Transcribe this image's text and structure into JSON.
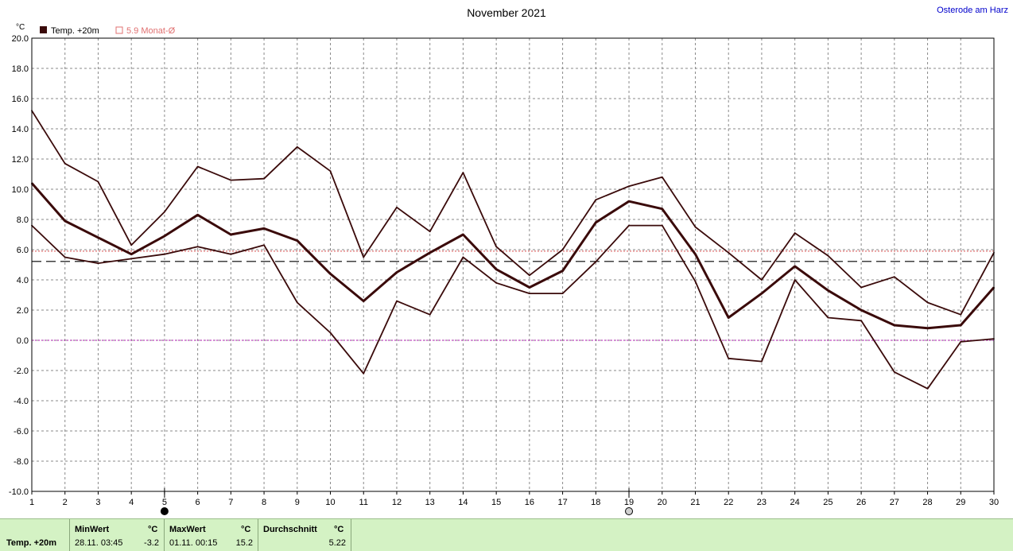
{
  "chart_data": {
    "type": "line",
    "title": "November 2021",
    "location": "Osterode am Harz",
    "unit_label": "°C",
    "ylim": [
      -10,
      20
    ],
    "yticks": [
      "20.0",
      "18.0",
      "16.0",
      "14.0",
      "12.0",
      "10.0",
      "8.0",
      "6.0",
      "4.0",
      "2.0",
      "0.0",
      "-2.0",
      "-4.0",
      "-6.0",
      "-8.0",
      "-10.0"
    ],
    "x": [
      1,
      2,
      3,
      4,
      5,
      6,
      7,
      8,
      9,
      10,
      11,
      12,
      13,
      14,
      15,
      16,
      17,
      18,
      19,
      20,
      21,
      22,
      23,
      24,
      25,
      26,
      27,
      28,
      29,
      30
    ],
    "grid": true,
    "legend": [
      {
        "label": "Temp. +20m",
        "color": "#3a0a0a"
      },
      {
        "label": "5.9 Monat-Ø",
        "color": "#e07070"
      }
    ],
    "series": [
      {
        "role": "max",
        "values": [
          15.2,
          11.7,
          10.5,
          6.3,
          8.5,
          11.5,
          10.6,
          10.7,
          12.8,
          11.2,
          5.5,
          8.8,
          7.2,
          11.1,
          6.2,
          4.3,
          6.0,
          9.3,
          10.2,
          10.8,
          7.5,
          5.8,
          4.0,
          7.1,
          5.6,
          3.5,
          4.2,
          2.5,
          1.7,
          5.8
        ]
      },
      {
        "role": "mean",
        "values": [
          10.4,
          7.9,
          6.8,
          5.7,
          6.9,
          8.3,
          7.0,
          7.4,
          6.6,
          4.4,
          2.6,
          4.5,
          5.8,
          7.0,
          4.7,
          3.5,
          4.6,
          7.8,
          9.2,
          8.7,
          5.7,
          1.5,
          3.1,
          4.9,
          3.3,
          2.0,
          1.0,
          0.8,
          1.0,
          3.5
        ]
      },
      {
        "role": "min",
        "values": [
          7.6,
          5.5,
          5.1,
          5.4,
          5.7,
          6.2,
          5.7,
          6.3,
          2.5,
          0.5,
          -2.2,
          2.6,
          1.7,
          5.5,
          3.8,
          3.1,
          3.1,
          5.2,
          7.6,
          7.6,
          3.9,
          -1.2,
          -1.4,
          4.0,
          1.5,
          1.3,
          -2.1,
          -3.2,
          -0.1,
          0.1
        ]
      }
    ],
    "reference_lines": [
      {
        "value": 5.9,
        "style": "dotted",
        "color": "#e07070"
      },
      {
        "value": 5.22,
        "style": "dashed",
        "color": "#000000"
      },
      {
        "value": 0.0,
        "style": "dotted",
        "color": "#c040c0"
      }
    ],
    "moon_phases": [
      {
        "day": 5,
        "phase": "new-moon"
      },
      {
        "day": 19,
        "phase": "full-moon"
      }
    ]
  },
  "footer": {
    "row_label": "Temp. +20m",
    "min": {
      "header": "MinWert",
      "unit": "°C",
      "datetime": "28.11.  03:45",
      "value": "-3.2"
    },
    "max": {
      "header": "MaxWert",
      "unit": "°C",
      "datetime": "01.11.  00:15",
      "value": "15.2"
    },
    "avg": {
      "header": "Durchschnitt",
      "unit": "°C",
      "value": "5.22"
    }
  }
}
